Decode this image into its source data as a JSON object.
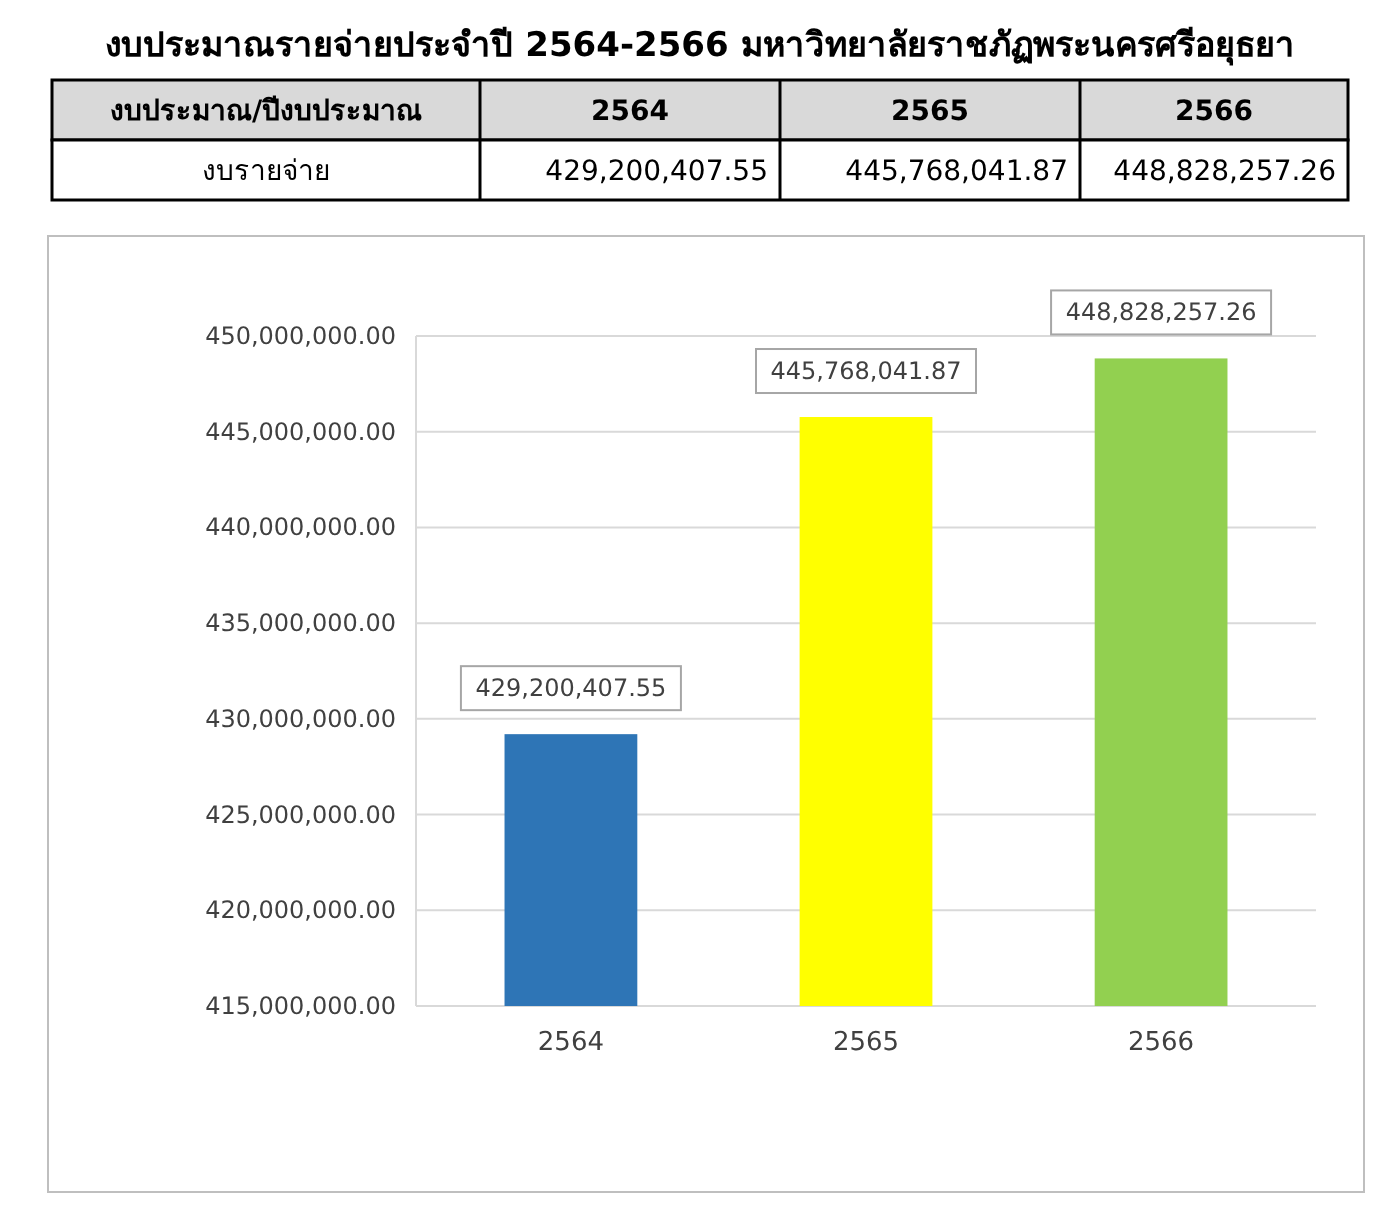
{
  "chart_data": {
    "type": "bar",
    "title": "งบประมาณรายจ่ายประจำปี 2564-2566 มหาวิทยาลัยราชภัฏพระนครศรีอยุธยา",
    "categories": [
      "2564",
      "2565",
      "2566"
    ],
    "values": [
      429200407.55,
      445768041.87,
      448828257.26
    ],
    "colors": [
      "#2e75b6",
      "#ffff00",
      "#92d050"
    ],
    "ylim": [
      415000000,
      450000000
    ],
    "yticks": [
      {
        "value": 415000000,
        "label": "415,000,000.00"
      },
      {
        "value": 420000000,
        "label": "420,000,000.00"
      },
      {
        "value": 425000000,
        "label": "425,000,000.00"
      },
      {
        "value": 430000000,
        "label": "430,000,000.00"
      },
      {
        "value": 435000000,
        "label": "435,000,000.00"
      },
      {
        "value": 440000000,
        "label": "440,000,000.00"
      },
      {
        "value": 445000000,
        "label": "445,000,000.00"
      },
      {
        "value": 450000000,
        "label": "450,000,000.00"
      }
    ],
    "grid": true,
    "value_labels": [
      "429,200,407.55",
      "445,768,041.87",
      "448,828,257.26"
    ],
    "annotations": [
      "งบประมาณ/ปีงบประมาณ",
      "งบรายจ่าย"
    ]
  }
}
